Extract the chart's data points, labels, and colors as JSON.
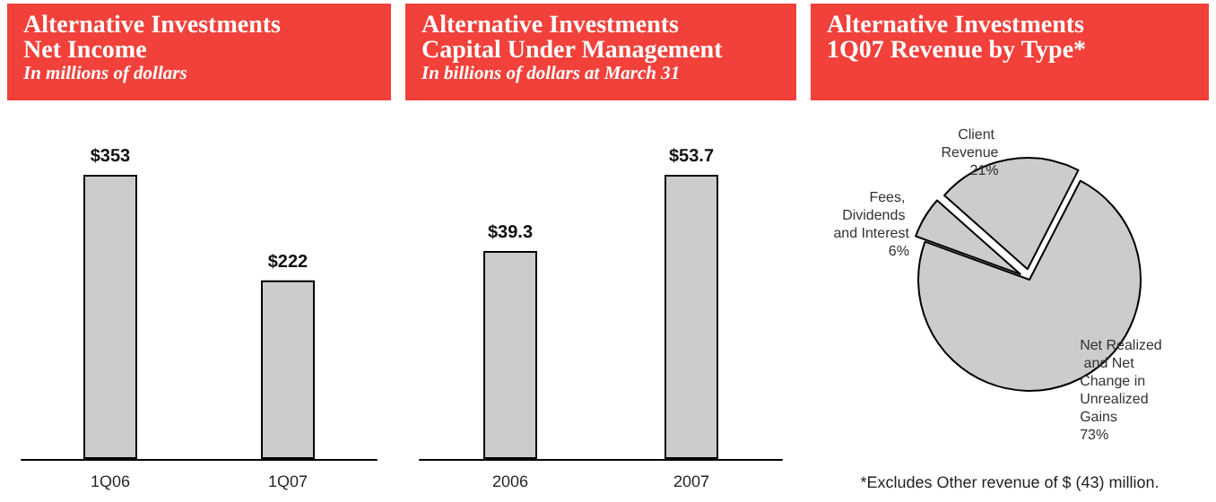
{
  "chart_data": [
    {
      "type": "bar",
      "title": "Alternative Investments\nNet Income",
      "subtitle": "In millions of dollars",
      "categories": [
        "1Q06",
        "1Q07"
      ],
      "values": [
        353,
        222
      ],
      "value_labels": [
        "$353",
        "$222"
      ],
      "color": "#cccccc"
    },
    {
      "type": "bar",
      "title": "Alternative Investments\nCapital Under Management",
      "subtitle": "In billions of dollars at March 31",
      "categories": [
        "2006",
        "2007"
      ],
      "values": [
        39.3,
        53.7
      ],
      "value_labels": [
        "$39.3",
        "$53.7"
      ],
      "color": "#cccccc"
    },
    {
      "type": "pie",
      "title": "Alternative Investments\n1Q07 Revenue by Type*",
      "categories": [
        "Fees, Dividends and Interest",
        "Client Revenue",
        "Net Realized and Net Change in Unrealized Gains"
      ],
      "values": [
        6,
        21,
        73
      ],
      "value_labels": [
        "6%",
        "21%",
        "73%"
      ],
      "colors": [
        "#cccccc",
        "#cccccc",
        "#cccccc"
      ],
      "annotations": [
        "*Excludes Other revenue of $ (43) million."
      ]
    }
  ]
}
